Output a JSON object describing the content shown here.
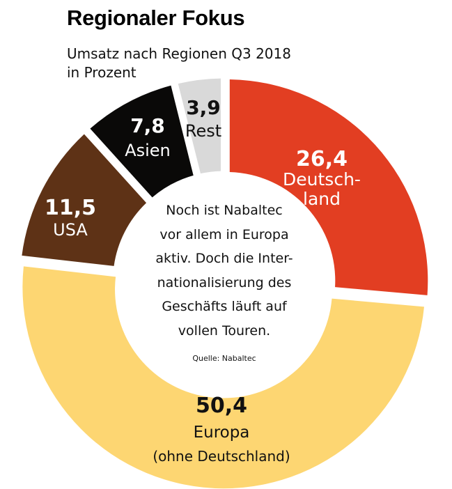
{
  "header": {
    "title": "Regionaler Fokus",
    "subtitle_line1": "Umsatz nach Regionen Q3 2018",
    "subtitle_line2": "in Prozent"
  },
  "center_note": {
    "lines": [
      "Noch ist Nabaltec",
      "vor allem in Europa",
      "aktiv. Doch die Inter-",
      "nationalisierung des",
      "Geschäfts läuft auf",
      "vollen Touren."
    ],
    "source": "Quelle: Nabaltec"
  },
  "chart_data": {
    "type": "pie",
    "variant": "donut",
    "title": "Regionaler Fokus",
    "subtitle": "Umsatz nach Regionen Q3 2018 in Prozent",
    "unit": "Prozent",
    "start": "top",
    "direction": "clockwise",
    "slices": [
      {
        "name": "Deutschland",
        "value": 26.4,
        "value_label": "26,4",
        "label_lines": [
          "Deutsch-",
          "land"
        ],
        "color": "#e23e22",
        "text_color": "#ffffff"
      },
      {
        "name": "Europa (ohne Deutschland)",
        "value": 50.4,
        "value_label": "50,4",
        "label_lines": [
          "Europa",
          "(ohne Deutschland)"
        ],
        "color": "#fdd672",
        "text_color": "#111111"
      },
      {
        "name": "USA",
        "value": 11.5,
        "value_label": "11,5",
        "label_lines": [
          "USA"
        ],
        "color": "#5e3216",
        "text_color": "#ffffff"
      },
      {
        "name": "Asien",
        "value": 7.8,
        "value_label": "7,8",
        "label_lines": [
          "Asien"
        ],
        "color": "#0a0908",
        "text_color": "#ffffff"
      },
      {
        "name": "Rest",
        "value": 3.9,
        "value_label": "3,9",
        "label_lines": [
          "Rest"
        ],
        "color": "#d9d9d9",
        "text_color": "#111111"
      }
    ],
    "source": "Quelle: Nabaltec"
  }
}
